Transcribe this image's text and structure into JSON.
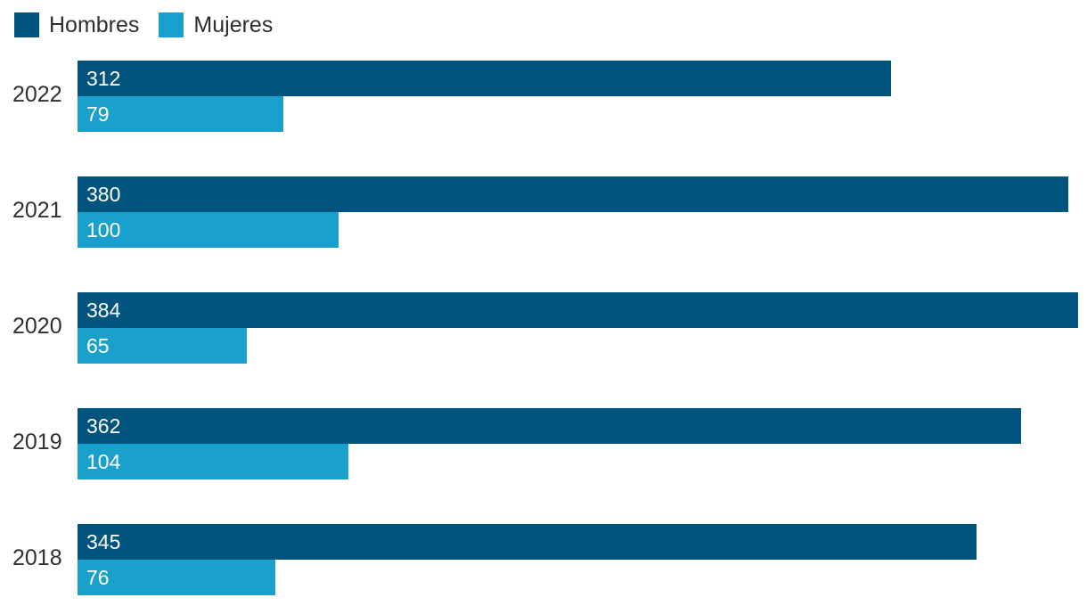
{
  "chart_data": {
    "type": "bar",
    "orientation": "horizontal",
    "title": "",
    "xlabel": "",
    "ylabel": "",
    "categories": [
      "2022",
      "2021",
      "2020",
      "2019",
      "2018"
    ],
    "series": [
      {
        "name": "Hombres",
        "color": "#00547d",
        "values": [
          312,
          380,
          384,
          362,
          345
        ]
      },
      {
        "name": "Mujeres",
        "color": "#19a0cc",
        "values": [
          79,
          100,
          65,
          104,
          76
        ]
      }
    ],
    "xlim": [
      0,
      384
    ],
    "value_labels": "inside-start-white",
    "legend_position": "top-left",
    "grid": false,
    "axis_ticks": "none"
  },
  "colors": {
    "background": "#ffffff",
    "hombres_bar": "#00547d",
    "mujeres_bar": "#19a0cc",
    "year_label_text": "#303030",
    "legend_text": "#2e2e2e",
    "value_text": "#ffffff"
  }
}
